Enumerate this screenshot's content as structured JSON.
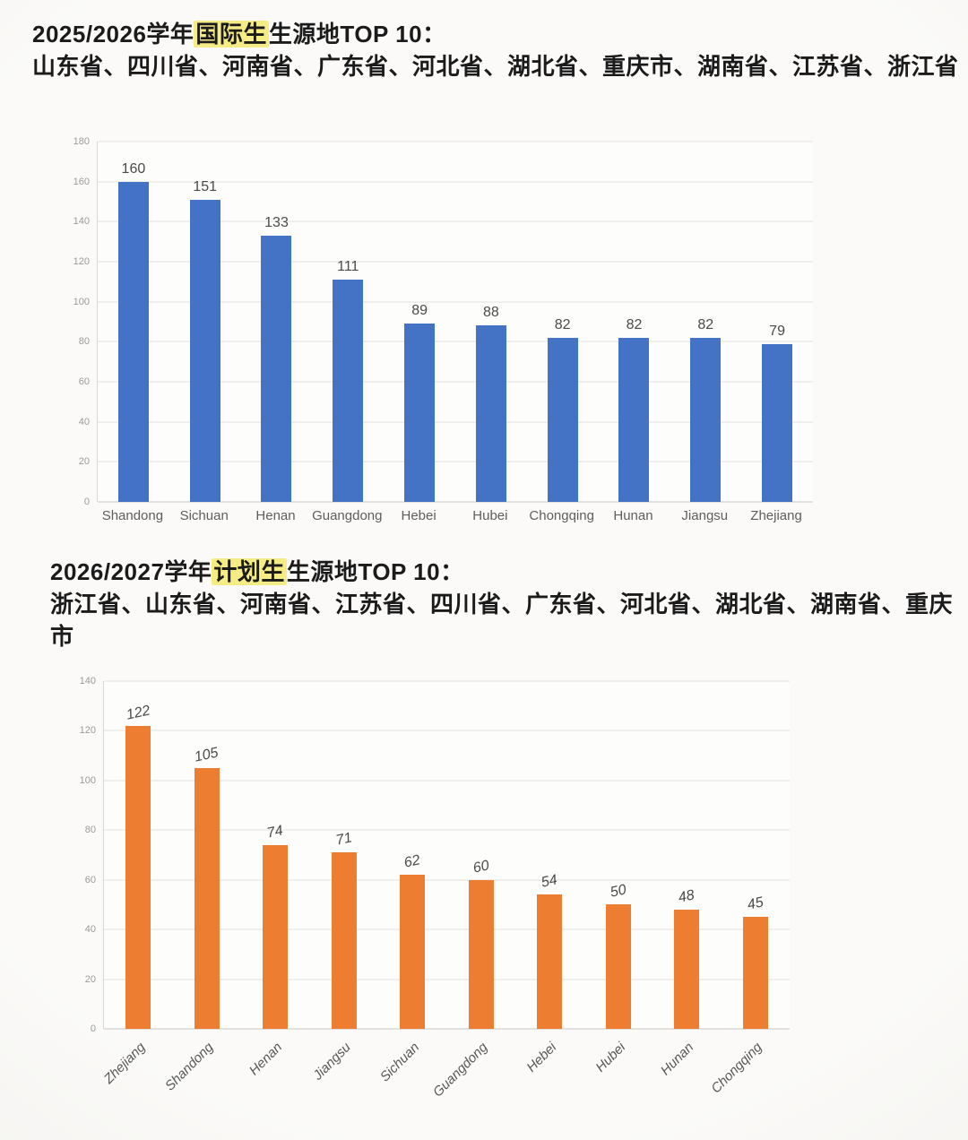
{
  "sections": [
    {
      "title_prefix": "2025/2026学年",
      "title_highlight": "国际生",
      "title_suffix": "生源地TOP 10：",
      "subtitle": "山东省、四川省、河南省、广东省、河北省、湖北省、重庆市、湖南省、江苏省、浙江省"
    },
    {
      "title_prefix": "2026/2027学年",
      "title_highlight": "计划生",
      "title_suffix": "生源地TOP 10：",
      "subtitle": "浙江省、山东省、河南省、江苏省、四川省、广东省、河北省、湖北省、湖南省、重庆市"
    }
  ],
  "colors": {
    "bar_blue": "#4472C4",
    "bar_orange": "#ED7D31",
    "highlight_yellow": "#F6EC85"
  },
  "chart_data": [
    {
      "type": "bar",
      "title": "2025/2026学年国际生生源地TOP 10",
      "categories": [
        "Shandong",
        "Sichuan",
        "Henan",
        "Guangdong",
        "Hebei",
        "Hubei",
        "Chongqing",
        "Hunan",
        "Jiangsu",
        "Zhejiang"
      ],
      "values": [
        160,
        151,
        133,
        111,
        89,
        88,
        82,
        82,
        82,
        79
      ],
      "bar_color": "#4472C4",
      "xlabel": "",
      "ylabel": "",
      "ylim": [
        0,
        180
      ],
      "yticks": [
        0,
        20,
        40,
        60,
        80,
        100,
        120,
        140,
        160,
        180
      ],
      "grid": true,
      "legend": false,
      "xtick_rotation": 0
    },
    {
      "type": "bar",
      "title": "2026/2027学年计划生生源地TOP 10",
      "categories": [
        "Zhejiang",
        "Shandong",
        "Henan",
        "Jiangsu",
        "Sichuan",
        "Guangdong",
        "Hebei",
        "Hubei",
        "Hunan",
        "Chongqing"
      ],
      "values": [
        122,
        105,
        74,
        71,
        62,
        60,
        54,
        50,
        48,
        45
      ],
      "bar_color": "#ED7D31",
      "xlabel": "",
      "ylabel": "",
      "ylim": [
        0,
        140
      ],
      "yticks": [
        0,
        20,
        40,
        60,
        80,
        100,
        120,
        140
      ],
      "grid": true,
      "legend": false,
      "xtick_rotation": 45
    }
  ]
}
